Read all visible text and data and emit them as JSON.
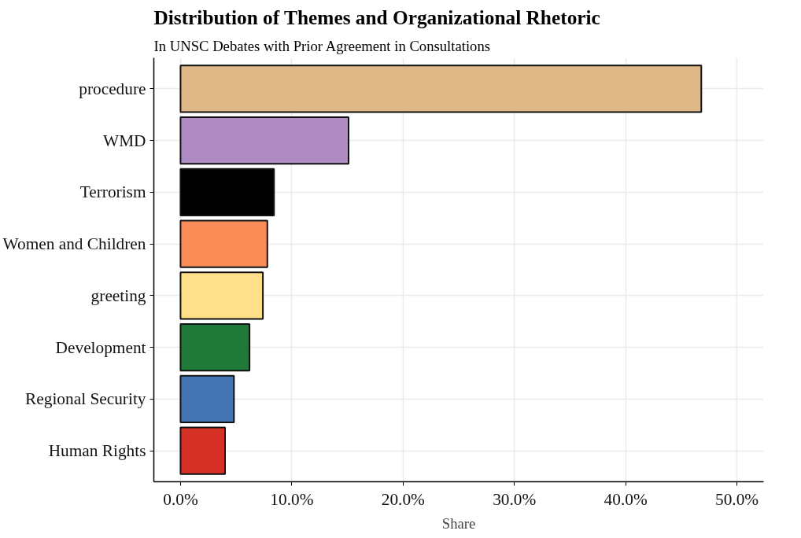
{
  "chart_data": {
    "type": "bar",
    "orientation": "horizontal",
    "title": "Distribution of Themes and Organizational Rhetoric",
    "subtitle": "In UNSC Debates with Prior Agreement in Consultations",
    "xlabel": "Share",
    "categories": [
      "procedure",
      "WMD",
      "Terrorism",
      "Women and Children",
      "greeting",
      "Development",
      "Regional Security",
      "Human Rights"
    ],
    "values": [
      46.8,
      15.1,
      8.4,
      7.8,
      7.4,
      6.2,
      4.8,
      4.0
    ],
    "colors": [
      "#deb887",
      "#b08cc4",
      "#000000",
      "#fc8d59",
      "#fee08b",
      "#1f7a3a",
      "#4575b4",
      "#d73027"
    ],
    "xlim": [
      -2.4,
      52.4
    ],
    "xticks": [
      {
        "value": 0,
        "label": "0.0%"
      },
      {
        "value": 10,
        "label": "10.0%"
      },
      {
        "value": 20,
        "label": "20.0%"
      },
      {
        "value": 30,
        "label": "30.0%"
      },
      {
        "value": 40,
        "label": "40.0%"
      },
      {
        "value": 50,
        "label": "50.0%"
      }
    ],
    "grid": true
  }
}
